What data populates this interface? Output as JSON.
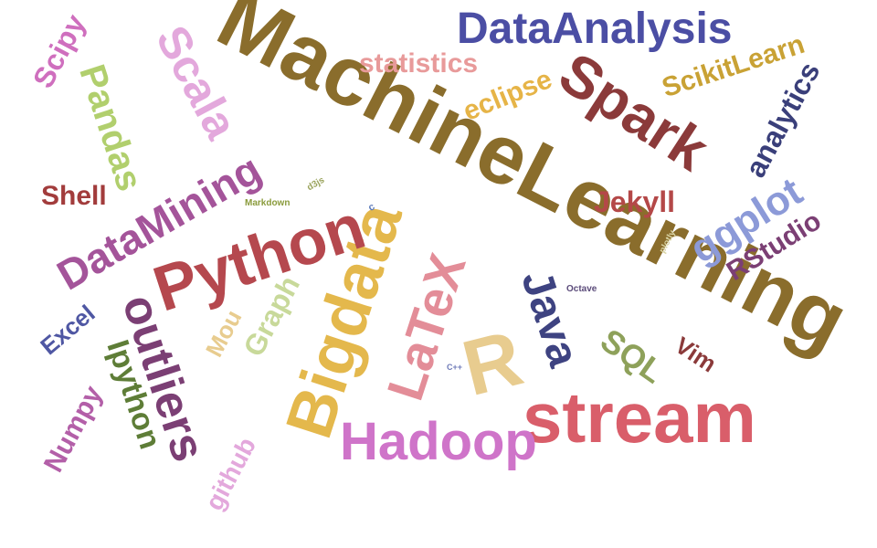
{
  "words": [
    {
      "text": "MachineLearning",
      "color": "#8a6d2c"
    },
    {
      "text": "Bigdata",
      "color": "#e4b84c"
    },
    {
      "text": "stream",
      "color": "#d95e6a"
    },
    {
      "text": "Python",
      "color": "#b5484e"
    },
    {
      "text": "Spark",
      "color": "#8b3a3a"
    },
    {
      "text": "DataMining",
      "color": "#a4549a"
    },
    {
      "text": "DataAnalysis",
      "color": "#4b4ea4"
    },
    {
      "text": "Hadoop",
      "color": "#cf74c9"
    },
    {
      "text": "outliers",
      "color": "#7b3f74"
    },
    {
      "text": "LaTeX",
      "color": "#e38d98"
    },
    {
      "text": "Scala",
      "color": "#e3a8dc"
    },
    {
      "text": "R",
      "color": "#e8cc8f"
    },
    {
      "text": "Ipython",
      "color": "#5e7d37"
    },
    {
      "text": "Java",
      "color": "#3e4381"
    },
    {
      "text": "Pandas",
      "color": "#b1cf6d"
    },
    {
      "text": "ggplot",
      "color": "#8c9ad8"
    },
    {
      "text": "statistics",
      "color": "#e89a9a"
    },
    {
      "text": "SQL",
      "color": "#8ea15a"
    },
    {
      "text": "ScikitLearn",
      "color": "#c9a235"
    },
    {
      "text": "analytics",
      "color": "#3a3f7a"
    },
    {
      "text": "eclipse",
      "color": "#e6b447"
    },
    {
      "text": "Graph",
      "color": "#c8d99a"
    },
    {
      "text": "Shell",
      "color": "#a23c3c"
    },
    {
      "text": "Jekyll",
      "color": "#b44848"
    },
    {
      "text": "RStudio",
      "color": "#7b3f74"
    },
    {
      "text": "Scipy",
      "color": "#cf6fbe"
    },
    {
      "text": "Numpy",
      "color": "#b35fa8"
    },
    {
      "text": "github",
      "color": "#e3a8dc"
    },
    {
      "text": "Excel",
      "color": "#4f57a3"
    },
    {
      "text": "Mou",
      "color": "#e8cc8f"
    },
    {
      "text": "Vim",
      "color": "#8b3a3a"
    },
    {
      "text": "Markdown",
      "color": "#8a9b3c"
    },
    {
      "text": "d3js",
      "color": "#9aa35c"
    },
    {
      "text": "Octave",
      "color": "#5b4b7a"
    },
    {
      "text": "plotly",
      "color": "#d8d3a2"
    },
    {
      "text": "C++",
      "color": "#6f7bb8"
    },
    {
      "text": "c",
      "color": "#5a78b8"
    }
  ]
}
